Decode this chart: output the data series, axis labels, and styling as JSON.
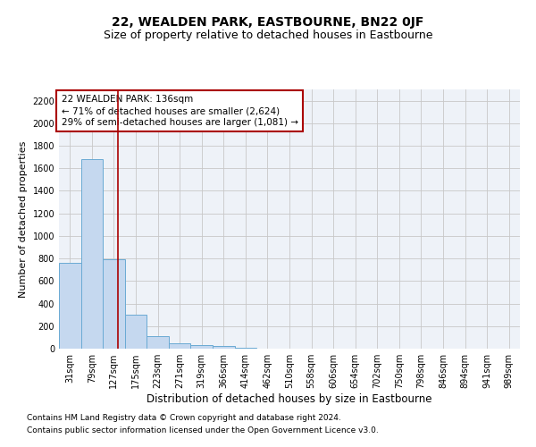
{
  "title": "22, WEALDEN PARK, EASTBOURNE, BN22 0JF",
  "subtitle": "Size of property relative to detached houses in Eastbourne",
  "xlabel": "Distribution of detached houses by size in Eastbourne",
  "ylabel": "Number of detached properties",
  "footnote1": "Contains HM Land Registry data © Crown copyright and database right 2024.",
  "footnote2": "Contains public sector information licensed under the Open Government Licence v3.0.",
  "bin_labels": [
    "31sqm",
    "79sqm",
    "127sqm",
    "175sqm",
    "223sqm",
    "271sqm",
    "319sqm",
    "366sqm",
    "414sqm",
    "462sqm",
    "510sqm",
    "558sqm",
    "606sqm",
    "654sqm",
    "702sqm",
    "750sqm",
    "798sqm",
    "846sqm",
    "894sqm",
    "941sqm",
    "989sqm"
  ],
  "bar_values": [
    760,
    1680,
    790,
    300,
    110,
    50,
    35,
    25,
    10,
    3,
    2,
    1,
    1,
    1,
    0,
    0,
    0,
    0,
    0,
    0,
    0
  ],
  "bar_color": "#c5d8ef",
  "bar_edge_color": "#6aaad4",
  "vline_x": 2.19,
  "vline_color": "#aa0000",
  "annotation_text": "22 WEALDEN PARK: 136sqm\n← 71% of detached houses are smaller (2,624)\n29% of semi-detached houses are larger (1,081) →",
  "annotation_box_color": "#aa0000",
  "annotation_text_color": "#000000",
  "ylim": [
    0,
    2300
  ],
  "yticks": [
    0,
    200,
    400,
    600,
    800,
    1000,
    1200,
    1400,
    1600,
    1800,
    2000,
    2200
  ],
  "grid_color": "#c8c8c8",
  "background_color": "#eef2f8",
  "title_fontsize": 10,
  "subtitle_fontsize": 9,
  "ylabel_fontsize": 8,
  "xlabel_fontsize": 8.5,
  "tick_fontsize": 7,
  "annotation_fontsize": 7.5,
  "footnote_fontsize": 6.5
}
